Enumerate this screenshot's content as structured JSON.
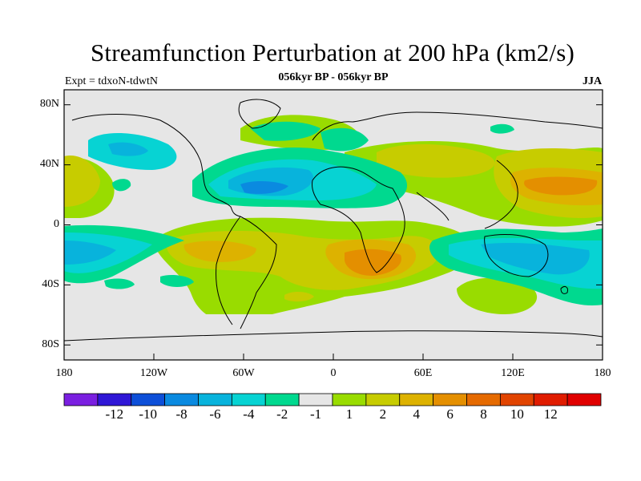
{
  "title": "Streamfunction Perturbation at 200 hPa (km2/s)",
  "experiment": "Expt = tdxoN-tdwtN",
  "period": "056kyr BP - 056kyr BP",
  "season": "JJA",
  "lat_labels": [
    "80N",
    "40N",
    "0",
    "40S",
    "80S"
  ],
  "lon_labels": [
    "180",
    "120W",
    "60W",
    "0",
    "60E",
    "120E",
    "180"
  ],
  "colorbar": {
    "colors": [
      "#7a1fe0",
      "#2f17d6",
      "#0d4fd8",
      "#0a8ae0",
      "#08b3dc",
      "#07d3d3",
      "#00d98f",
      "#e6e6e6",
      "#99dc00",
      "#c7cc00",
      "#ddb200",
      "#e48f00",
      "#e56a00",
      "#e14400",
      "#e01c00",
      "#e00000"
    ],
    "labels": [
      "-12",
      "-10",
      "-8",
      "-6",
      "-4",
      "-2",
      "-1",
      "1",
      "2",
      "4",
      "6",
      "8",
      "10",
      "12"
    ]
  }
}
